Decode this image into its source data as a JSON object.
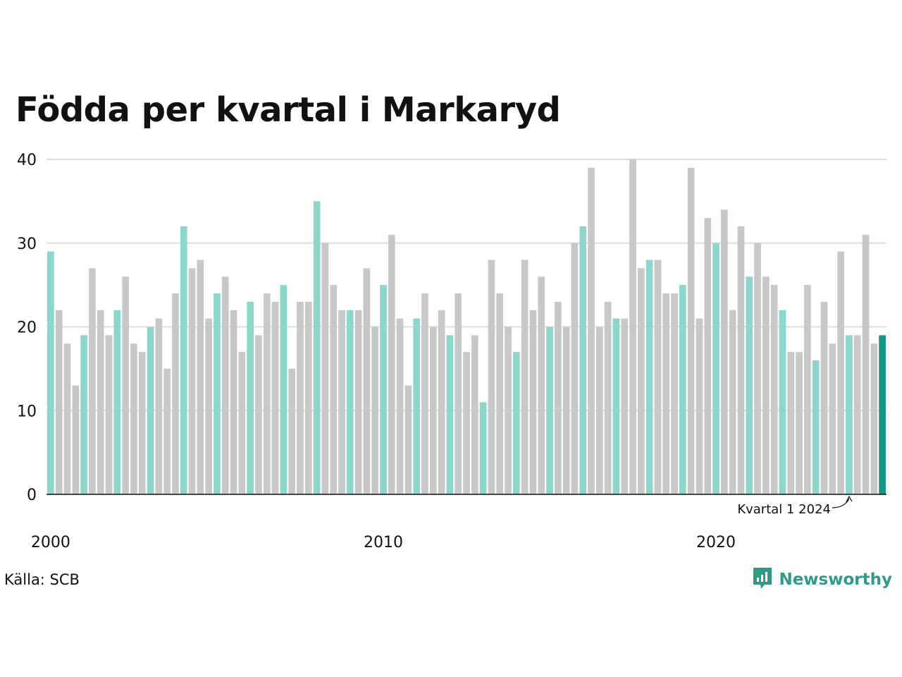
{
  "title": "Födda per kvartal i Markaryd",
  "source": "Källa: SCB",
  "brand": {
    "name": "Newsworthy",
    "icon": "newsworthy-logo-icon"
  },
  "colors": {
    "highlight_q1": "#8dd6cc",
    "other": "#c8c8c8",
    "latest": "#1a9484",
    "grid": "#dddddd",
    "axis": "#111111",
    "brand": "#2f9a8a"
  },
  "annotation": "Kvartal 1 2024",
  "chart_data": {
    "type": "bar",
    "title": "Födda per kvartal i Markaryd",
    "xlabel": "",
    "ylabel": "",
    "ylim": [
      0,
      40
    ],
    "yticks": [
      0,
      10,
      20,
      30,
      40
    ],
    "xticks": [
      {
        "label": "2000",
        "index": 0
      },
      {
        "label": "2010",
        "index": 40
      },
      {
        "label": "2020",
        "index": 80
      }
    ],
    "grid": true,
    "start": {
      "year": 2000,
      "quarter": 1
    },
    "values": [
      29,
      22,
      18,
      13,
      19,
      27,
      22,
      19,
      22,
      26,
      18,
      17,
      20,
      21,
      15,
      24,
      32,
      27,
      28,
      21,
      24,
      26,
      22,
      17,
      23,
      19,
      24,
      23,
      25,
      15,
      23,
      23,
      35,
      30,
      25,
      22,
      22,
      22,
      27,
      20,
      25,
      31,
      21,
      13,
      21,
      24,
      20,
      22,
      19,
      24,
      17,
      19,
      11,
      28,
      24,
      20,
      17,
      28,
      22,
      26,
      20,
      23,
      20,
      30,
      32,
      39,
      20,
      23,
      21,
      21,
      40,
      27,
      28,
      28,
      24,
      24,
      25,
      39,
      21,
      33,
      30,
      34,
      22,
      32,
      26,
      30,
      26,
      25,
      22,
      17,
      17,
      25,
      16,
      23,
      18,
      29,
      19,
      19,
      31,
      18,
      19
    ]
  }
}
